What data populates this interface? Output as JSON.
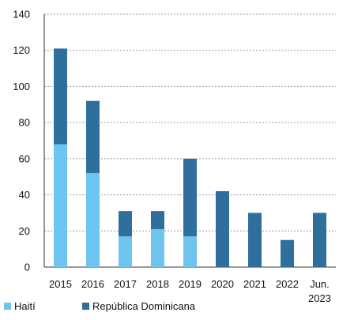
{
  "chart_data": {
    "type": "bar",
    "stacked": true,
    "title": "",
    "xlabel": "",
    "ylabel": "",
    "categories": [
      "2015",
      "2016",
      "2017",
      "2018",
      "2019",
      "2020",
      "2021",
      "2022",
      "Jun. 2023"
    ],
    "category_lines": [
      [
        "2015"
      ],
      [
        "2016"
      ],
      [
        "2017"
      ],
      [
        "2018"
      ],
      [
        "2019"
      ],
      [
        "2020"
      ],
      [
        "2021"
      ],
      [
        "2022"
      ],
      [
        "Jun.",
        "2023"
      ]
    ],
    "series": [
      {
        "name": "Haití",
        "color": "#6cc4ef",
        "values": [
          68,
          52,
          17,
          21,
          17,
          0,
          0,
          0,
          0
        ]
      },
      {
        "name": "República Dominicana",
        "color": "#2e6f9c",
        "values": [
          53,
          40,
          14,
          10,
          43,
          42,
          30,
          15,
          30
        ]
      }
    ],
    "ylim": [
      0,
      140
    ],
    "yticks": [
      0,
      20,
      40,
      60,
      80,
      100,
      120,
      140
    ],
    "grid": true,
    "legend_position": "bottom-left"
  }
}
